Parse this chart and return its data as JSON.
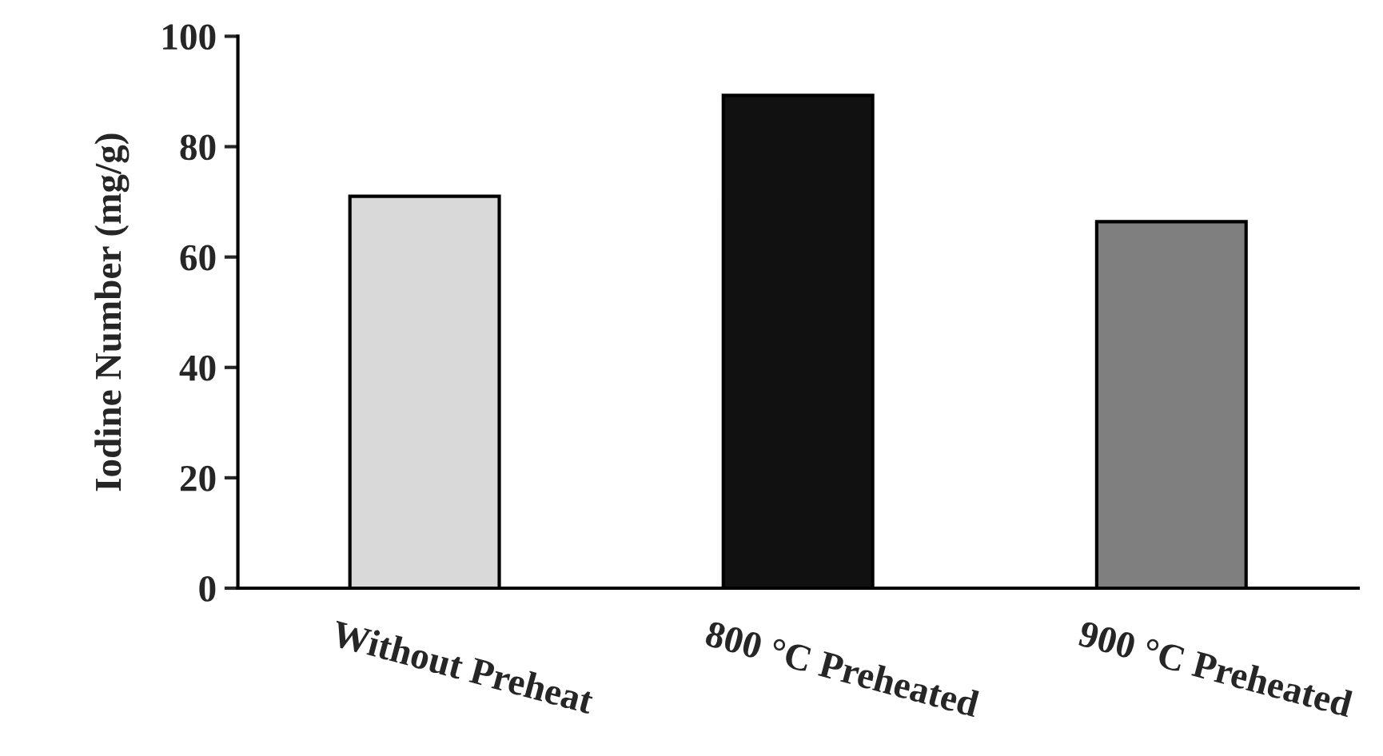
{
  "chart_data": {
    "type": "bar",
    "ylabel": "Iodine Number (mg/g)",
    "categories": [
      "Without Preheat",
      "800 °C Preheated",
      "900 °C Preheated"
    ],
    "values": [
      71.0,
      89.3,
      66.4
    ],
    "colors": [
      "#d9d9d9",
      "#111111",
      "#7f7f7f"
    ],
    "ylim": [
      0,
      100
    ],
    "yticks": [
      0,
      20,
      40,
      60,
      80,
      100
    ],
    "grid": false,
    "legend": false
  }
}
